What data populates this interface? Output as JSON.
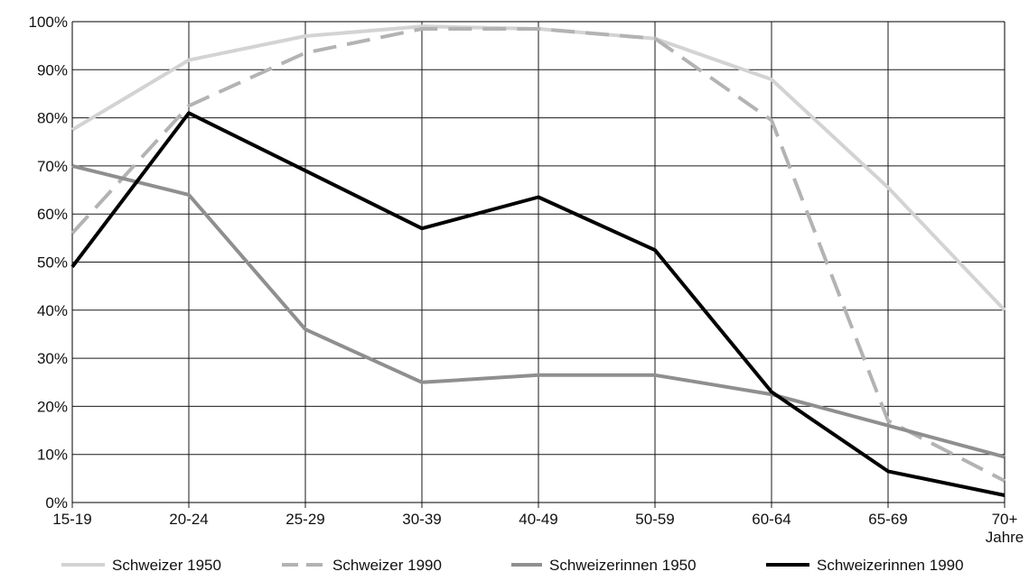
{
  "chart_data": {
    "type": "line",
    "categories": [
      "15-19",
      "20-24",
      "25-29",
      "30-39",
      "40-49",
      "50-59",
      "60-64",
      "65-69",
      "70+ Jahre"
    ],
    "category_lines": [
      [
        "15-19"
      ],
      [
        "20-24"
      ],
      [
        "25-29"
      ],
      [
        "30-39"
      ],
      [
        "40-49"
      ],
      [
        "50-59"
      ],
      [
        "60-64"
      ],
      [
        "65-69"
      ],
      [
        "70+",
        "Jahre"
      ]
    ],
    "y_ticks": [
      "0%",
      "10%",
      "20%",
      "30%",
      "40%",
      "50%",
      "60%",
      "70%",
      "80%",
      "90%",
      "100%"
    ],
    "ylim": [
      0,
      100
    ],
    "y_unit": "%",
    "grid": true,
    "legend_position": "bottom",
    "series": [
      {
        "name": "Schweizer 1950",
        "color": "#d3d3d3",
        "dash": "solid",
        "values": [
          77.5,
          92,
          97,
          99,
          98.5,
          96.5,
          88,
          65.5,
          40
        ]
      },
      {
        "name": "Schweizer 1990",
        "color": "#b3b3b3",
        "dash": "dashed",
        "values": [
          56,
          82.5,
          93.5,
          98.5,
          98.5,
          96.5,
          79.5,
          17,
          4.5
        ]
      },
      {
        "name": "Schweizerinnen 1950",
        "color": "#8f8f8f",
        "dash": "solid",
        "values": [
          70,
          64,
          36,
          25,
          26.5,
          26.5,
          22.5,
          16,
          9.5
        ]
      },
      {
        "name": "Schweizerinnen 1990",
        "color": "#000000",
        "dash": "solid",
        "values": [
          49,
          81,
          69,
          57,
          63.5,
          52.5,
          23,
          6.5,
          1.5
        ]
      }
    ]
  }
}
